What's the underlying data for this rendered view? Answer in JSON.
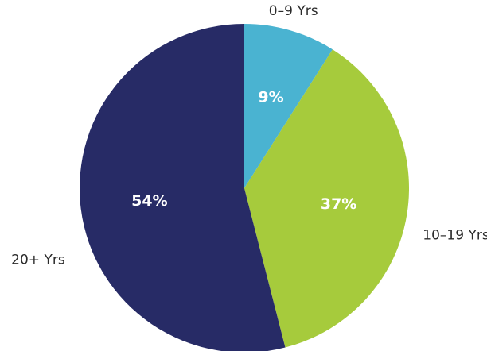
{
  "chart_data": {
    "type": "pie",
    "title": "",
    "categories": [
      "0–9 Yrs",
      "10–19 Yrs",
      "20+ Yrs"
    ],
    "values": [
      9,
      37,
      54
    ],
    "value_labels": [
      "9%",
      "37%",
      "54%"
    ],
    "colors": [
      "#4ab3d1",
      "#a6cb3c",
      "#272b66"
    ],
    "start_angle_deg": 0,
    "direction": "clockwise",
    "legend": "none"
  }
}
